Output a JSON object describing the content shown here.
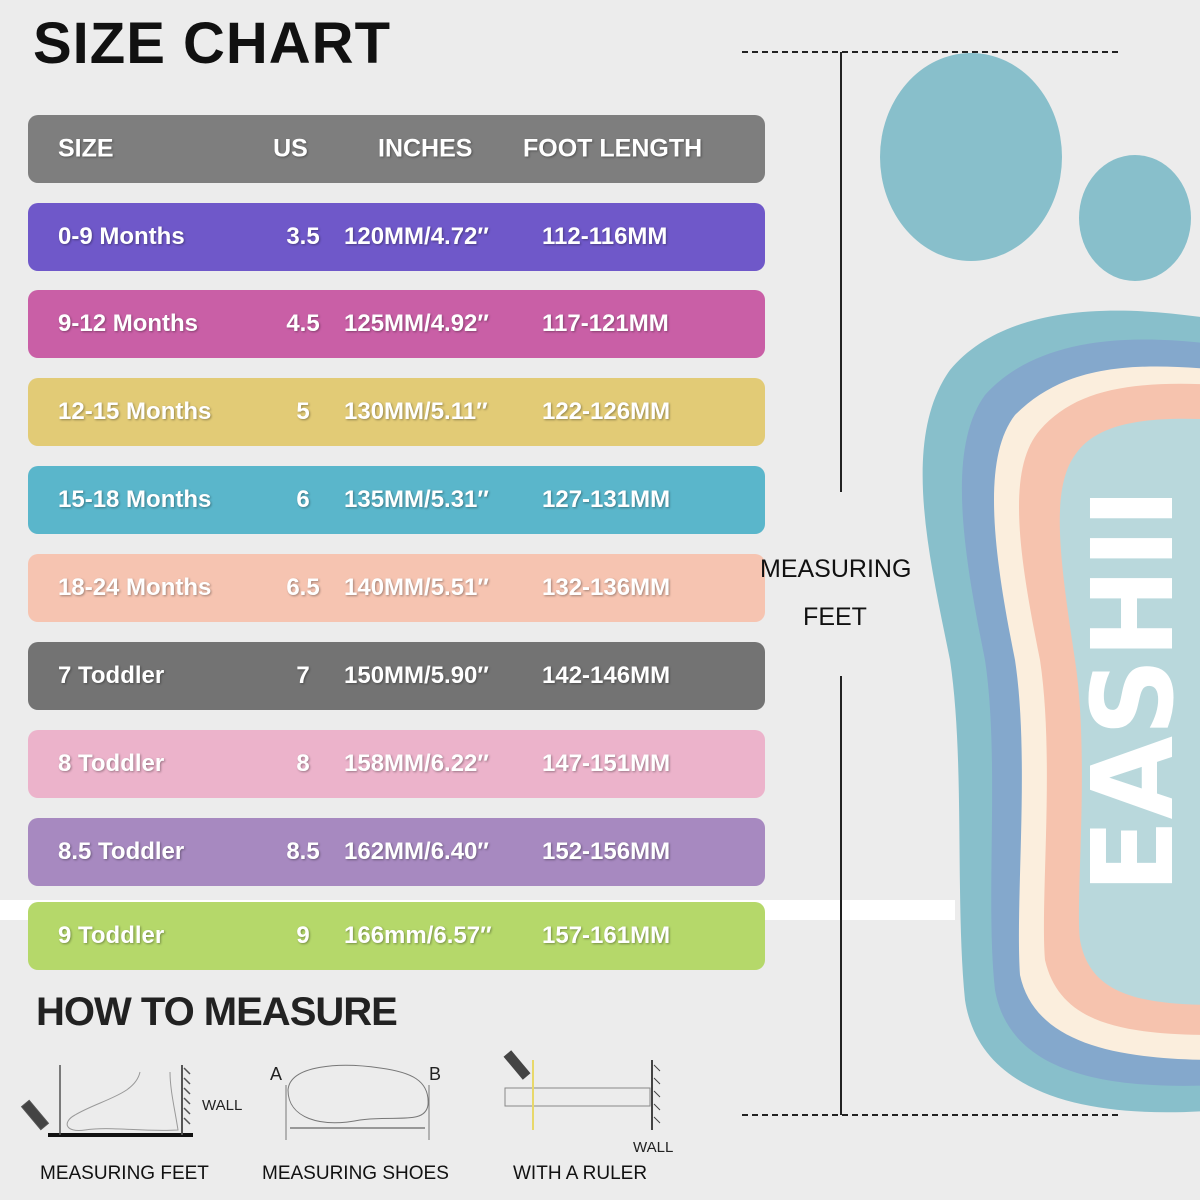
{
  "title": "SIZE CHART",
  "table": {
    "headers": [
      "SIZE",
      "US",
      "INCHES",
      "FOOT LENGTH"
    ],
    "header_color": "#7e7e7e",
    "rows": [
      {
        "size": "0-9 Months",
        "us": "3.5",
        "inches": "120MM/4.72″",
        "foot_length": "112-116MM",
        "color": "#6f58c9"
      },
      {
        "size": "9-12 Months",
        "us": "4.5",
        "inches": "125MM/4.92″",
        "foot_length": "117-121MM",
        "color": "#c95fa6"
      },
      {
        "size": "12-15 Months",
        "us": "5",
        "inches": "130MM/5.11″",
        "foot_length": "122-126MM",
        "color": "#e2cb76"
      },
      {
        "size": "15-18 Months",
        "us": "6",
        "inches": "135MM/5.31″",
        "foot_length": "127-131MM",
        "color": "#5ab6cb"
      },
      {
        "size": "18-24 Months",
        "us": "6.5",
        "inches": "140MM/5.51″",
        "foot_length": "132-136MM",
        "color": "#f6c4b1"
      },
      {
        "size": "7 Toddler",
        "us": "7",
        "inches": "150MM/5.90″",
        "foot_length": "142-146MM",
        "color": "#737373"
      },
      {
        "size": "8 Toddler",
        "us": "8",
        "inches": "158MM/6.22″",
        "foot_length": "147-151MM",
        "color": "#ecb3cb"
      },
      {
        "size": "8.5 Toddler",
        "us": "8.5",
        "inches": "162MM/6.40″",
        "foot_length": "152-156MM",
        "color": "#a789c0"
      },
      {
        "size": "9 Toddler",
        "us": "9",
        "inches": "166mm/6.57″",
        "foot_length": "157-161MM",
        "color": "#b5d86a"
      }
    ]
  },
  "measuring_label": {
    "line1": "MEASURING",
    "line2": "FEET"
  },
  "logo_text": "EASHII",
  "how_to": {
    "title": "HOW TO MEASURE",
    "steps": [
      {
        "caption": "MEASURING FEET",
        "wall_label": "WALL",
        "icon": "foot-against-wall-icon"
      },
      {
        "caption": "MEASURING SHOES",
        "point_a": "A",
        "point_b": "B",
        "icon": "shoe-sole-icon"
      },
      {
        "caption": "WITH A RULER",
        "wall_label": "WALL",
        "icon": "ruler-icon"
      }
    ]
  }
}
